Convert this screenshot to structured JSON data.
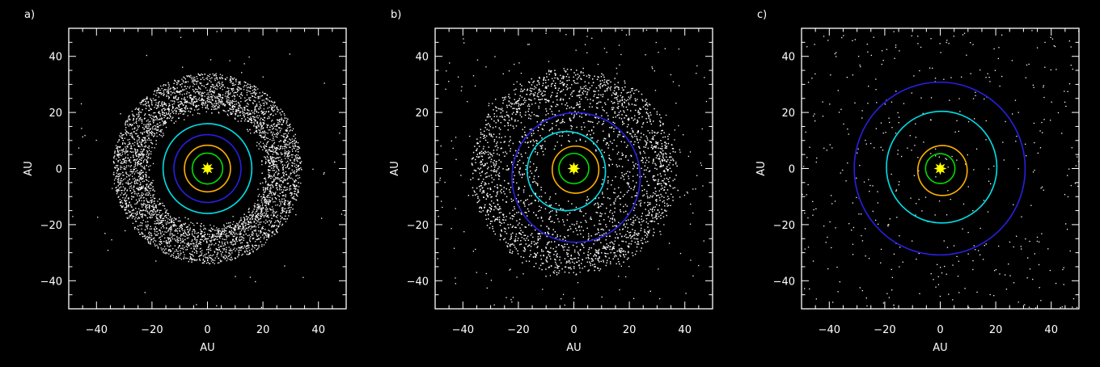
{
  "chart_data": [
    {
      "type": "scatter",
      "title": "a)",
      "xlabel": "AU",
      "ylabel": "AU",
      "xlim": [
        -50,
        50
      ],
      "ylim": [
        -50,
        50
      ],
      "x_ticks": [
        "−40",
        "−20",
        "0",
        "20",
        "40"
      ],
      "y_ticks": [
        "−40",
        "−20",
        "0",
        "20",
        "40"
      ],
      "tick_values": [
        -40,
        -20,
        0,
        20,
        40
      ],
      "background": "#000000",
      "star": {
        "position": [
          0,
          0
        ],
        "color": "#ffff00"
      },
      "orbits": [
        {
          "color": "#00dd00",
          "center": [
            0,
            0
          ],
          "radius": 5.5
        },
        {
          "color": "#ffb000",
          "center": [
            0,
            0
          ],
          "radius": 8.3
        },
        {
          "color": "#2a1fe0",
          "center": [
            0,
            0
          ],
          "radius": 12.1
        },
        {
          "color": "#00e0e8",
          "center": [
            0,
            0
          ],
          "radius": 16.0
        }
      ],
      "particles": {
        "color": "#ffffff",
        "distribution": "ring",
        "radius_range": [
          19,
          34
        ],
        "approx_count": 5000,
        "outliers": 60
      }
    },
    {
      "type": "scatter",
      "title": "b)",
      "xlabel": "AU",
      "ylabel": "AU",
      "xlim": [
        -50,
        50
      ],
      "ylim": [
        -50,
        50
      ],
      "x_ticks": [
        "−40",
        "−20",
        "0",
        "20",
        "40"
      ],
      "y_ticks": [
        "−40",
        "−20",
        "0",
        "20",
        "40"
      ],
      "tick_values": [
        -40,
        -20,
        0,
        20,
        40
      ],
      "background": "#000000",
      "star": {
        "position": [
          0,
          0
        ],
        "color": "#ffff00"
      },
      "orbits": [
        {
          "color": "#00dd00",
          "center": [
            0,
            0
          ],
          "radius": 5.4
        },
        {
          "color": "#ffb000",
          "center": [
            0.6,
            -0.4
          ],
          "radius": 8.4
        },
        {
          "color": "#00e0e8",
          "center": [
            -2.7,
            -0.9
          ],
          "radius": 14.1
        },
        {
          "color": "#2a1fe0",
          "center": [
            0.8,
            -3.2
          ],
          "radius": 23.1
        }
      ],
      "particles": {
        "color": "#ffffff",
        "distribution": "ring",
        "radius_range": [
          10,
          37
        ],
        "approx_count": 5000,
        "outliers": 200
      }
    },
    {
      "type": "scatter",
      "title": "c)",
      "xlabel": "AU",
      "ylabel": "AU",
      "xlim": [
        -50,
        50
      ],
      "ylim": [
        -50,
        50
      ],
      "x_ticks": [
        "−40",
        "−20",
        "0",
        "20",
        "40"
      ],
      "y_ticks": [
        "−40",
        "−20",
        "0",
        "20",
        "40"
      ],
      "tick_values": [
        -40,
        -20,
        0,
        20,
        40
      ],
      "background": "#000000",
      "star": {
        "position": [
          0,
          0
        ],
        "color": "#ffff00"
      },
      "orbits": [
        {
          "color": "#00dd00",
          "center": [
            0,
            0
          ],
          "radius": 5.3
        },
        {
          "color": "#ffb000",
          "center": [
            0.8,
            -0.7
          ],
          "radius": 8.9
        },
        {
          "color": "#00e0e8",
          "center": [
            0.5,
            0.5
          ],
          "radius": 19.9
        },
        {
          "color": "#2a1fe0",
          "center": [
            -0.2,
            0
          ],
          "radius": 30.8
        }
      ],
      "particles": {
        "color": "#ffffff",
        "distribution": "uniform",
        "radius_range": [
          0,
          50
        ],
        "approx_count": 450,
        "outliers": 0
      }
    }
  ]
}
